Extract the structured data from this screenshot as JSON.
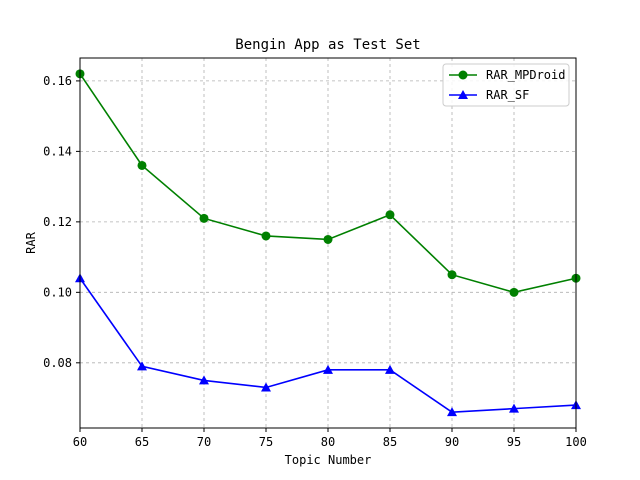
{
  "chart_data": {
    "type": "line",
    "title": "Bengin App as Test Set",
    "xlabel": "Topic Number",
    "ylabel": "RAR",
    "x": [
      60,
      65,
      70,
      75,
      80,
      85,
      90,
      95,
      100
    ],
    "xlim": [
      60,
      100
    ],
    "ylim": [
      0.0615,
      0.1665
    ],
    "xticks": [
      "60",
      "65",
      "70",
      "75",
      "80",
      "85",
      "90",
      "95",
      "100"
    ],
    "yticks": [
      "0.08",
      "0.10",
      "0.12",
      "0.14",
      "0.16"
    ],
    "grid": true,
    "legend_position": "top-right",
    "series": [
      {
        "name": "RAR_MPDroid",
        "color": "#008000",
        "marker": "circle",
        "values": [
          0.162,
          0.136,
          0.121,
          0.116,
          0.115,
          0.122,
          0.105,
          0.1,
          0.104
        ]
      },
      {
        "name": "RAR_SF",
        "color": "#0000ff",
        "marker": "triangle",
        "values": [
          0.104,
          0.079,
          0.075,
          0.073,
          0.078,
          0.078,
          0.066,
          0.067,
          0.068
        ]
      }
    ]
  }
}
